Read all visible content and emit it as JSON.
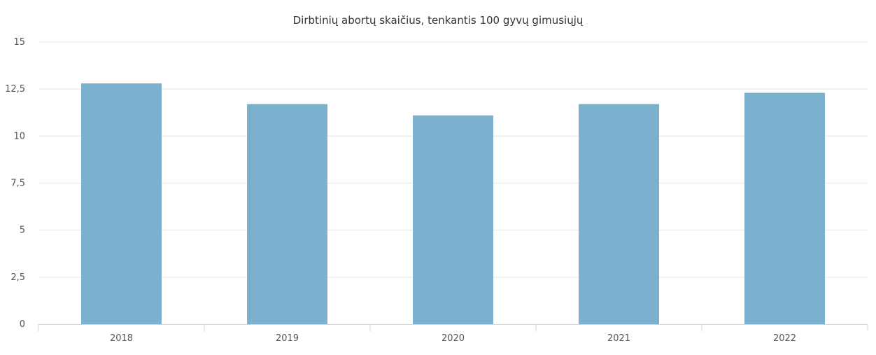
{
  "chart_data": {
    "type": "bar",
    "title": "Dirbtinių abortų skaičius, tenkantis 100 gyvų gimusiųjų",
    "xlabel": "",
    "ylabel": "",
    "categories": [
      "2018",
      "2019",
      "2020",
      "2021",
      "2022"
    ],
    "series": [
      {
        "values": [
          12.8,
          11.7,
          11.1,
          11.7,
          12.3
        ]
      }
    ],
    "ylim": [
      0,
      15
    ],
    "yticks": [
      0,
      2.5,
      5,
      7.5,
      10,
      12.5,
      15
    ],
    "ytick_labels": [
      "0",
      "2,5",
      "5",
      "7,5",
      "10",
      "12,5",
      "15"
    ],
    "grid": true,
    "legend": "none",
    "colors": {
      "bar": "#7cb0cf",
      "grid": "#e6e6e6",
      "axis": "#ccd6eb",
      "title": "#333333",
      "tick": "#555555"
    }
  }
}
